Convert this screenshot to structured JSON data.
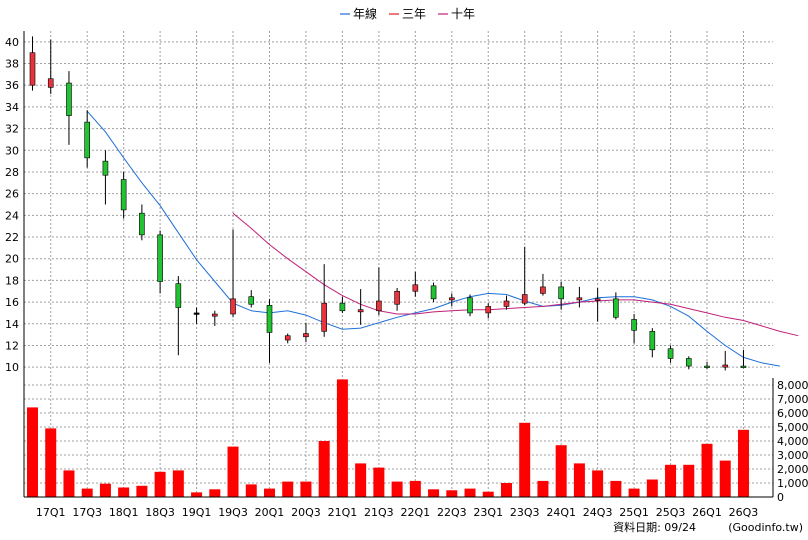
{
  "chart_data": {
    "type": "candlestick_with_volume",
    "legend": {
      "placement": "top-center",
      "items": [
        {
          "name": "年線",
          "color": "#1e6fd9"
        },
        {
          "name": "三年",
          "color": "#e02020"
        },
        {
          "name": "十年",
          "color": "#c0207a"
        }
      ]
    },
    "price_axis": {
      "ylim": [
        9,
        41
      ],
      "ticks": [
        10,
        12,
        14,
        16,
        18,
        20,
        22,
        24,
        26,
        28,
        30,
        32,
        34,
        36,
        38,
        40
      ],
      "side": "left"
    },
    "volume_axis": {
      "ylim": [
        0,
        8500
      ],
      "ticks": [
        "0",
        "1,000",
        "2,000",
        "3,000",
        "4,000",
        "5,000",
        "6,000",
        "7,000",
        "8,000"
      ],
      "tick_values": [
        0,
        1000,
        2000,
        3000,
        4000,
        5000,
        6000,
        7000,
        8000
      ],
      "side": "right"
    },
    "x_tick_labels": [
      {
        "i": 1,
        "label": "17Q1"
      },
      {
        "i": 3,
        "label": "17Q3"
      },
      {
        "i": 5,
        "label": "18Q1"
      },
      {
        "i": 7,
        "label": "18Q3"
      },
      {
        "i": 9,
        "label": "19Q1"
      },
      {
        "i": 11,
        "label": "19Q3"
      },
      {
        "i": 13,
        "label": "20Q1"
      },
      {
        "i": 15,
        "label": "20Q3"
      },
      {
        "i": 17,
        "label": "21Q1"
      },
      {
        "i": 19,
        "label": "21Q3"
      },
      {
        "i": 21,
        "label": "22Q1"
      },
      {
        "i": 23,
        "label": "22Q3"
      },
      {
        "i": 25,
        "label": "23Q1"
      },
      {
        "i": 27,
        "label": "23Q3"
      },
      {
        "i": 29,
        "label": "24Q1"
      },
      {
        "i": 31,
        "label": "24Q3"
      },
      {
        "i": 33,
        "label": "25Q1"
      },
      {
        "i": 35,
        "label": "25Q3"
      },
      {
        "i": 37,
        "label": "26Q1"
      },
      {
        "i": 39,
        "label": "26Q3"
      }
    ],
    "colors": {
      "up": "#e8323c",
      "down": "#22c232",
      "flat": "#000000",
      "volume": "#ff0000",
      "grid": "#a0a0a0"
    },
    "candles": [
      {
        "o": 36,
        "h": 40.5,
        "l": 35.5,
        "c": 39
      },
      {
        "o": 35.8,
        "h": 40.2,
        "l": 35.2,
        "c": 36.6
      },
      {
        "o": 36.2,
        "h": 37.3,
        "l": 30.5,
        "c": 33.2
      },
      {
        "o": 32.6,
        "h": 33.7,
        "l": 28.4,
        "c": 29.3
      },
      {
        "o": 29,
        "h": 30,
        "l": 25,
        "c": 27.7
      },
      {
        "o": 27.3,
        "h": 28,
        "l": 23.7,
        "c": 24.5
      },
      {
        "o": 24.2,
        "h": 25,
        "l": 21.7,
        "c": 22.2
      },
      {
        "o": 22.2,
        "h": 22.6,
        "l": 16.8,
        "c": 17.9
      },
      {
        "o": 17.7,
        "h": 18.4,
        "l": 11.1,
        "c": 15.5
      },
      {
        "o": 15,
        "h": 15.5,
        "l": 14,
        "c": 15
      },
      {
        "o": 14.7,
        "h": 15.2,
        "l": 13.8,
        "c": 14.9
      },
      {
        "o": 14.9,
        "h": 22.7,
        "l": 14.6,
        "c": 16.3
      },
      {
        "o": 16.5,
        "h": 17.1,
        "l": 15.5,
        "c": 15.8
      },
      {
        "o": 15.7,
        "h": 16.3,
        "l": 10.4,
        "c": 13.2
      },
      {
        "o": 12.5,
        "h": 13.1,
        "l": 12.2,
        "c": 12.9
      },
      {
        "o": 12.8,
        "h": 14.1,
        "l": 12.3,
        "c": 13.1
      },
      {
        "o": 13.3,
        "h": 19.5,
        "l": 12.8,
        "c": 15.9
      },
      {
        "o": 15.9,
        "h": 16.5,
        "l": 15,
        "c": 15.2
      },
      {
        "o": 15.1,
        "h": 17.2,
        "l": 13.9,
        "c": 15.3
      },
      {
        "o": 15.2,
        "h": 19.2,
        "l": 14.8,
        "c": 16.1
      },
      {
        "o": 15.8,
        "h": 17.3,
        "l": 15.2,
        "c": 17
      },
      {
        "o": 17,
        "h": 18.8,
        "l": 16.5,
        "c": 17.6
      },
      {
        "o": 17.5,
        "h": 17.8,
        "l": 16,
        "c": 16.3
      },
      {
        "o": 16.2,
        "h": 16.8,
        "l": 15.6,
        "c": 16.4
      },
      {
        "o": 16.4,
        "h": 16.7,
        "l": 14.7,
        "c": 15
      },
      {
        "o": 15,
        "h": 15.9,
        "l": 14.5,
        "c": 15.6
      },
      {
        "o": 15.6,
        "h": 16.6,
        "l": 15.3,
        "c": 16.1
      },
      {
        "o": 15.9,
        "h": 21.1,
        "l": 15.7,
        "c": 16.7
      },
      {
        "o": 16.8,
        "h": 18.6,
        "l": 16.6,
        "c": 17.4
      },
      {
        "o": 17.4,
        "h": 17.9,
        "l": 15.3,
        "c": 16.3
      },
      {
        "o": 16.2,
        "h": 17.4,
        "l": 15.5,
        "c": 16.4
      },
      {
        "o": 16.2,
        "h": 17.3,
        "l": 14.2,
        "c": 16.3
      },
      {
        "o": 16.3,
        "h": 16.9,
        "l": 14.4,
        "c": 14.6
      },
      {
        "o": 14.4,
        "h": 14.9,
        "l": 12.2,
        "c": 13.4
      },
      {
        "o": 13.3,
        "h": 13.6,
        "l": 10.9,
        "c": 11.6
      },
      {
        "o": 11.7,
        "h": 12,
        "l": 10.4,
        "c": 10.8
      },
      {
        "o": 10.8,
        "h": 11,
        "l": 9.8,
        "c": 10.1
      },
      {
        "o": 10.1,
        "h": 10.5,
        "l": 9.8,
        "c": 10
      },
      {
        "o": 10,
        "h": 11.5,
        "l": 9.7,
        "c": 10.2
      },
      {
        "o": 10.1,
        "h": 11.6,
        "l": 9.9,
        "c": 10
      }
    ],
    "volume": [
      6400,
      4900,
      1900,
      600,
      950,
      680,
      800,
      1800,
      1900,
      330,
      550,
      3600,
      900,
      600,
      1100,
      1100,
      4000,
      8400,
      2400,
      2100,
      1100,
      1150,
      550,
      480,
      600,
      380,
      1000,
      5300,
      1150,
      3700,
      2400,
      1900,
      1150,
      600,
      1250,
      2300,
      2300,
      3800,
      2600,
      4800
    ],
    "series": [
      {
        "name": "年線",
        "color": "#1e6fd9",
        "start": 3,
        "values": [
          33.6,
          31.7,
          29.3,
          27.0,
          24.9,
          22.4,
          19.9,
          17.9,
          15.9,
          15.2,
          15.0,
          15.2,
          14.8,
          14.1,
          13.5,
          13.6,
          14.1,
          14.6,
          15.0,
          15.4,
          16.0,
          16.5,
          16.8,
          16.7,
          16.1,
          15.6,
          15.7,
          16.0,
          16.4,
          16.5,
          16.5,
          16.2,
          15.6,
          14.7,
          13.3,
          12.0,
          10.9,
          10.4,
          10.1
        ]
      },
      {
        "name": "十年",
        "color": "#c0207a",
        "start": 11,
        "values": [
          24.2,
          22.8,
          21.3,
          20.0,
          18.8,
          17.6,
          16.6,
          15.8,
          15.2,
          14.9,
          14.9,
          15.1,
          15.2,
          15.3,
          15.3,
          15.4,
          15.5,
          15.6,
          15.8,
          16.0,
          16.1,
          16.2,
          16.2,
          16.0,
          15.8,
          15.4,
          15.0,
          14.6,
          14.3,
          13.8,
          13.3,
          12.9
        ]
      }
    ],
    "footer": {
      "date_text": "資料日期: 09/24",
      "source_text": "(Goodinfo.tw)"
    }
  }
}
